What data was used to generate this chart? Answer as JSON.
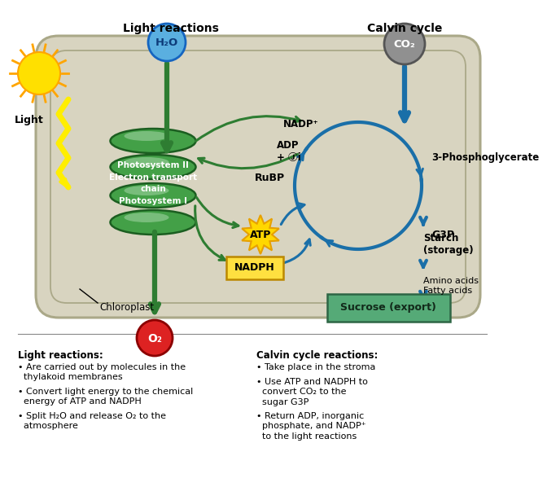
{
  "fig_bg": "#ffffff",
  "chloroplast_fill": "#d8d4c0",
  "chloroplast_edge": "#aaa888",
  "thylakoid_fill": "#4caf50",
  "thylakoid_edge": "#2e7d32",
  "h2o_circle_color": "#5aafe0",
  "h2o_text_color": "#1a4a90",
  "co2_circle_color": "#888888",
  "o2_circle_color": "#dd2222",
  "green_arrow_color": "#2e7d32",
  "blue_arrow_color": "#1a6fa8",
  "sucrose_box_color": "#55aa77",
  "atp_star_color": "#FFD700",
  "nadph_box_color": "#FFD700",
  "labels": {
    "light_reactions_title": "Light reactions",
    "calvin_cycle_title": "Calvin cycle",
    "h2o": "H₂O",
    "co2": "CO₂",
    "o2": "O₂",
    "nadp_plus": "NADP⁺",
    "adp_pi": "ADP\n+ Ⓙi",
    "rubp": "RuBP",
    "three_pg": "3-Phosphoglycerate",
    "g3p": "G3P",
    "starch": "Starch\n(storage)",
    "amino_fatty": "Amino acids\nFatty acids",
    "sucrose": "Sucrose (export)",
    "atp": "ATP",
    "nadph": "NADPH",
    "chloroplast": "Chloroplast",
    "light": "Light",
    "thylakoid_label": "Photosystem II\nElectron transport\nchain\nPhotosystem I",
    "lr_header": "Light reactions:",
    "lr_b1": "• Are carried out by molecules in the\n  thylakoid membranes",
    "lr_b2": "• Convert light energy to the chemical\n  energy of ATP and NADPH",
    "lr_b3": "• Split H₂O and release O₂ to the\n  atmosphere",
    "cc_header": "Calvin cycle reactions:",
    "cc_b1": "• Take place in the stroma",
    "cc_b2": "• Use ATP and NADPH to\n  convert CO₂ to the\n  sugar G3P",
    "cc_b3": "• Return ADP, inorganic\n  phosphate, and NADP⁺\n  to the light reactions"
  }
}
